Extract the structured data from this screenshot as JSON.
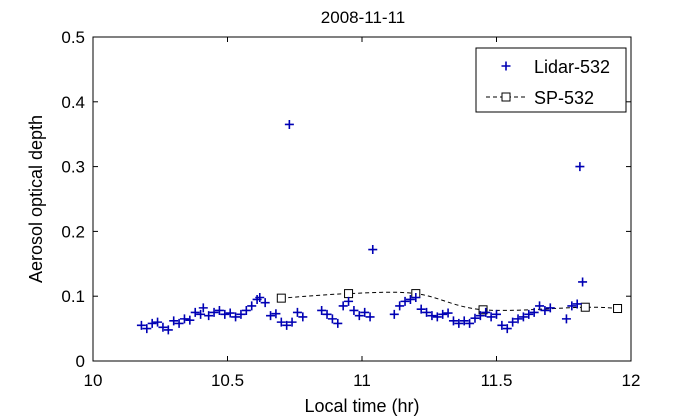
{
  "chart_data": {
    "type": "scatter",
    "title": "2008-11-11",
    "xlabel": "Local time (hr)",
    "ylabel": "Aerosol optical depth",
    "xlim": [
      10,
      12
    ],
    "ylim": [
      0,
      0.5
    ],
    "xticks": [
      "10",
      "10.5",
      "11",
      "11.5",
      "12"
    ],
    "yticks": [
      "0",
      "0.1",
      "0.2",
      "0.3",
      "0.4",
      "0.5"
    ],
    "grid": false,
    "legend_position": "top-right",
    "series": [
      {
        "name": "Lidar-532",
        "style": "plus-marker",
        "color": "#0000b4",
        "points": [
          [
            10.18,
            0.055
          ],
          [
            10.2,
            0.05
          ],
          [
            10.22,
            0.058
          ],
          [
            10.24,
            0.06
          ],
          [
            10.26,
            0.052
          ],
          [
            10.28,
            0.048
          ],
          [
            10.3,
            0.062
          ],
          [
            10.32,
            0.058
          ],
          [
            10.34,
            0.065
          ],
          [
            10.36,
            0.063
          ],
          [
            10.38,
            0.075
          ],
          [
            10.4,
            0.072
          ],
          [
            10.41,
            0.082
          ],
          [
            10.43,
            0.07
          ],
          [
            10.45,
            0.075
          ],
          [
            10.47,
            0.078
          ],
          [
            10.49,
            0.072
          ],
          [
            10.51,
            0.074
          ],
          [
            10.53,
            0.068
          ],
          [
            10.55,
            0.072
          ],
          [
            10.57,
            0.078
          ],
          [
            10.59,
            0.085
          ],
          [
            10.61,
            0.095
          ],
          [
            10.62,
            0.098
          ],
          [
            10.64,
            0.09
          ],
          [
            10.66,
            0.07
          ],
          [
            10.68,
            0.073
          ],
          [
            10.7,
            0.06
          ],
          [
            10.72,
            0.055
          ],
          [
            10.74,
            0.06
          ],
          [
            10.76,
            0.075
          ],
          [
            10.78,
            0.068
          ],
          [
            10.73,
            0.365
          ],
          [
            10.85,
            0.078
          ],
          [
            10.87,
            0.072
          ],
          [
            10.89,
            0.065
          ],
          [
            10.91,
            0.058
          ],
          [
            10.93,
            0.085
          ],
          [
            10.95,
            0.092
          ],
          [
            10.97,
            0.078
          ],
          [
            10.99,
            0.07
          ],
          [
            11.01,
            0.075
          ],
          [
            11.03,
            0.068
          ],
          [
            11.04,
            0.172
          ],
          [
            11.12,
            0.072
          ],
          [
            11.14,
            0.085
          ],
          [
            11.16,
            0.092
          ],
          [
            11.18,
            0.095
          ],
          [
            11.2,
            0.098
          ],
          [
            11.22,
            0.08
          ],
          [
            11.24,
            0.075
          ],
          [
            11.26,
            0.07
          ],
          [
            11.28,
            0.068
          ],
          [
            11.3,
            0.072
          ],
          [
            11.32,
            0.074
          ],
          [
            11.34,
            0.062
          ],
          [
            11.36,
            0.058
          ],
          [
            11.38,
            0.062
          ],
          [
            11.4,
            0.058
          ],
          [
            11.42,
            0.066
          ],
          [
            11.44,
            0.07
          ],
          [
            11.46,
            0.075
          ],
          [
            11.48,
            0.068
          ],
          [
            11.5,
            0.072
          ],
          [
            11.52,
            0.055
          ],
          [
            11.54,
            0.05
          ],
          [
            11.56,
            0.06
          ],
          [
            11.58,
            0.065
          ],
          [
            11.6,
            0.068
          ],
          [
            11.62,
            0.072
          ],
          [
            11.64,
            0.075
          ],
          [
            11.66,
            0.085
          ],
          [
            11.68,
            0.078
          ],
          [
            11.7,
            0.082
          ],
          [
            11.76,
            0.065
          ],
          [
            11.78,
            0.085
          ],
          [
            11.8,
            0.088
          ],
          [
            11.81,
            0.3
          ],
          [
            11.82,
            0.122
          ]
        ]
      },
      {
        "name": "SP-532",
        "style": "dashed-line-square-marker",
        "color": "#000000",
        "points": [
          [
            10.7,
            0.097
          ],
          [
            10.95,
            0.104
          ],
          [
            11.2,
            0.104
          ],
          [
            11.45,
            0.079
          ],
          [
            11.83,
            0.083
          ],
          [
            11.95,
            0.081
          ]
        ]
      }
    ]
  }
}
